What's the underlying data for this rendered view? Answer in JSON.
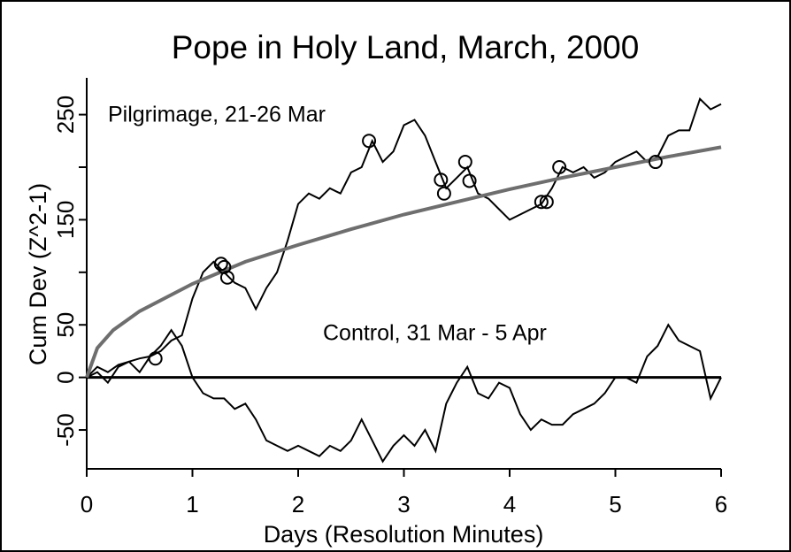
{
  "chart_data": {
    "type": "line",
    "title": "Pope in Holy Land, March, 2000",
    "xlabel": "Days (Resolution Minutes)",
    "ylabel": "Cum Dev (Z^2-1)",
    "annotations": [
      "Pilgrimage, 21-26 Mar",
      "Control, 31 Mar - 5 Apr"
    ],
    "xlim": [
      0,
      6
    ],
    "ylim": [
      -87,
      285
    ],
    "xticks": [
      0,
      1,
      2,
      3,
      4,
      5,
      6
    ],
    "yticks": [
      -50,
      0,
      50,
      150,
      250
    ],
    "yminor_ticks": [
      100,
      200
    ],
    "zero_line": 0,
    "x": [
      0,
      0.1,
      0.2,
      0.3,
      0.4,
      0.5,
      0.6,
      0.7,
      0.8,
      0.9,
      1,
      1.1,
      1.2,
      1.3,
      1.4,
      1.5,
      1.6,
      1.7,
      1.8,
      1.9,
      2,
      2.1,
      2.2,
      2.3,
      2.4,
      2.5,
      2.6,
      2.7,
      2.8,
      2.9,
      3,
      3.1,
      3.2,
      3.3,
      3.4,
      3.5,
      3.6,
      3.7,
      3.8,
      3.9,
      4,
      4.1,
      4.2,
      4.3,
      4.4,
      4.5,
      4.6,
      4.7,
      4.8,
      4.9,
      5,
      5.1,
      5.2,
      5.3,
      5.4,
      5.5,
      5.6,
      5.7,
      5.8,
      5.9,
      6
    ],
    "series": [
      {
        "color": "#000000",
        "values": [
          0,
          10,
          5,
          12,
          15,
          18,
          20,
          25,
          35,
          40,
          75,
          100,
          110,
          100,
          90,
          85,
          65,
          85,
          100,
          130,
          165,
          175,
          170,
          180,
          175,
          195,
          200,
          225,
          205,
          215,
          240,
          245,
          230,
          205,
          180,
          190,
          200,
          175,
          170,
          160,
          150,
          155,
          160,
          165,
          180,
          200,
          195,
          200,
          190,
          195,
          205,
          210,
          215,
          205,
          210,
          230,
          235,
          235,
          265,
          255,
          260
        ]
      },
      {
        "color": "#000000",
        "values": [
          0,
          5,
          -5,
          10,
          15,
          5,
          20,
          30,
          45,
          30,
          0,
          -15,
          -20,
          -20,
          -30,
          -25,
          -40,
          -60,
          -65,
          -70,
          -65,
          -70,
          -75,
          -65,
          -70,
          -60,
          -40,
          -60,
          -80,
          -65,
          -55,
          -65,
          -50,
          -70,
          -25,
          -5,
          10,
          -15,
          -20,
          -5,
          -10,
          -35,
          -50,
          -40,
          -45,
          -45,
          -35,
          -30,
          -25,
          -15,
          0,
          0,
          -5,
          20,
          30,
          50,
          35,
          30,
          25,
          -20,
          0
        ]
      },
      {
        "color": "#6e6e6e",
        "x": [
          0,
          0.1,
          0.25,
          0.5,
          1,
          1.5,
          2,
          2.5,
          3,
          3.5,
          4,
          4.5,
          5,
          5.5,
          6
        ],
        "values": [
          0,
          28,
          45,
          63,
          89,
          110,
          126,
          141,
          155,
          167,
          179,
          190,
          200,
          210,
          219
        ]
      }
    ],
    "events": {
      "x": [
        0.65,
        1.27,
        1.3,
        1.33,
        2.67,
        3.35,
        3.38,
        3.58,
        3.62,
        4.3,
        4.35,
        4.47,
        5.38
      ],
      "values": [
        18,
        108,
        105,
        95,
        225,
        188,
        175,
        205,
        187,
        167,
        167,
        200,
        205
      ]
    }
  }
}
